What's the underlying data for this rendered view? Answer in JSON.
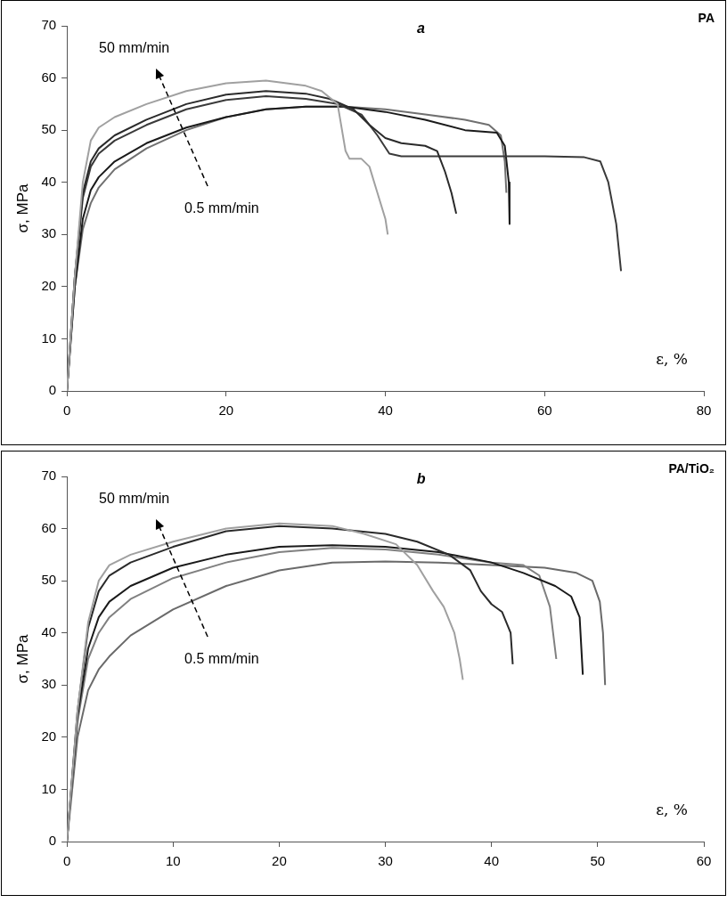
{
  "chart_data": [
    {
      "type": "line",
      "title": "a",
      "xlabel": "ε, %",
      "ylabel": "σ, MPa",
      "annotations": [
        "PA",
        "50 mm/min",
        "0.5 mm/min"
      ],
      "xlim": [
        0,
        80
      ],
      "xticks": [
        0,
        20,
        40,
        60,
        80
      ],
      "ylim": [
        0,
        70
      ],
      "yticks": [
        0,
        10,
        20,
        30,
        40,
        50,
        60,
        70
      ],
      "grid": false,
      "legend": false,
      "marker": "none",
      "series": [
        {
          "color": "#a0a0a0",
          "x": [
            0,
            1,
            2,
            3,
            4,
            6,
            10,
            15,
            20,
            25,
            30,
            32,
            34,
            35,
            35.5,
            37,
            38,
            39,
            40,
            40.3
          ],
          "values": [
            0,
            22,
            40,
            48,
            50.5,
            52.5,
            55,
            57.5,
            59,
            59.5,
            58.5,
            57.5,
            55,
            46,
            44.5,
            44.5,
            43,
            38,
            33,
            30
          ]
        },
        {
          "color": "#2a2a2a",
          "x": [
            0,
            1,
            2,
            3,
            4,
            6,
            10,
            15,
            20,
            25,
            30,
            33,
            36,
            38,
            40,
            42,
            45,
            46.5,
            47.5,
            48.3,
            48.9
          ],
          "values": [
            0,
            22,
            38,
            44,
            46.5,
            49,
            52,
            55,
            56.8,
            57.5,
            57,
            56,
            54,
            51,
            48.5,
            47.5,
            47,
            46,
            42,
            38,
            34
          ]
        },
        {
          "color": "#3a3a3a",
          "x": [
            0,
            1,
            2,
            3,
            4,
            6,
            10,
            15,
            20,
            25,
            30,
            34,
            37,
            39,
            40.5,
            42,
            45,
            50,
            55,
            60,
            65,
            67,
            68,
            69,
            69.6
          ],
          "values": [
            0,
            22,
            37,
            43,
            45.5,
            48,
            51,
            54,
            55.8,
            56.5,
            56,
            55,
            53,
            49,
            45.5,
            45,
            45,
            45,
            45,
            45,
            44.8,
            44,
            40,
            32,
            23
          ]
        },
        {
          "color": "#1a1a1a",
          "x": [
            0,
            1,
            2,
            3,
            4,
            6,
            10,
            15,
            20,
            25,
            30,
            35,
            40,
            45,
            50,
            54,
            55,
            55.5,
            55.6
          ],
          "values": [
            0,
            20,
            33,
            38.5,
            41,
            44,
            47.5,
            50.5,
            52.5,
            54,
            54.5,
            54.5,
            53.5,
            52,
            50,
            49.5,
            47,
            40,
            32
          ]
        },
        {
          "color": "#707070",
          "x": [
            0,
            1,
            2,
            3,
            4,
            6,
            10,
            15,
            20,
            25,
            30,
            35,
            40,
            45,
            50,
            53,
            54.5,
            55,
            55.2
          ],
          "values": [
            0,
            20,
            31,
            36,
            39,
            42.5,
            46.5,
            50,
            52.5,
            54,
            54.5,
            54.5,
            54,
            53,
            52,
            51,
            49,
            44,
            38
          ]
        }
      ]
    },
    {
      "type": "line",
      "title": "b",
      "xlabel": "ε, %",
      "ylabel": "σ, MPa",
      "annotations": [
        "PA/TiO₂",
        "50 mm/min",
        "0.5 mm/min"
      ],
      "xlim": [
        0,
        60
      ],
      "xticks": [
        0,
        10,
        20,
        30,
        40,
        50,
        60
      ],
      "ylim": [
        0,
        70
      ],
      "yticks": [
        0,
        10,
        20,
        30,
        40,
        50,
        60,
        70
      ],
      "grid": false,
      "legend": false,
      "marker": "none",
      "series": [
        {
          "color": "#a0a0a0",
          "x": [
            0,
            1,
            2,
            3,
            4,
            6,
            10,
            15,
            20,
            25,
            28,
            31,
            33,
            34.5,
            35.5,
            36.5,
            37,
            37.3
          ],
          "values": [
            0,
            25,
            42,
            50,
            53,
            55,
            57.5,
            60,
            61,
            60.5,
            59,
            57,
            53,
            48,
            45,
            40,
            35,
            31
          ]
        },
        {
          "color": "#2a2a2a",
          "x": [
            0,
            1,
            2,
            3,
            4,
            6,
            10,
            15,
            20,
            25,
            30,
            33,
            36,
            38,
            39,
            40,
            41,
            41.8,
            42
          ],
          "values": [
            0,
            25,
            41,
            48,
            51,
            53.5,
            56.5,
            59.5,
            60.5,
            60,
            59,
            57.5,
            55,
            52,
            48,
            45.5,
            44,
            40,
            34
          ]
        },
        {
          "color": "#1a1a1a",
          "x": [
            0,
            1,
            2,
            3,
            4,
            6,
            10,
            15,
            20,
            25,
            30,
            35,
            40,
            43,
            46,
            47.5,
            48.3,
            48.6
          ],
          "values": [
            0,
            24,
            37,
            43,
            46,
            49,
            52.5,
            55,
            56.5,
            56.8,
            56.5,
            55.5,
            53.5,
            51.5,
            49,
            47,
            43,
            32
          ]
        },
        {
          "color": "#808080",
          "x": [
            0,
            1,
            2,
            3,
            4,
            6,
            10,
            15,
            20,
            25,
            30,
            35,
            40,
            43,
            44.5,
            45.5,
            46.1
          ],
          "values": [
            0,
            23,
            35,
            40,
            43,
            46.5,
            50.5,
            53.5,
            55.5,
            56.3,
            56,
            55,
            53.5,
            53,
            51,
            45,
            35
          ]
        },
        {
          "color": "#6a6a6a",
          "x": [
            0,
            1,
            2,
            3,
            4,
            6,
            10,
            15,
            20,
            25,
            30,
            35,
            40,
            45,
            48,
            49.5,
            50.2,
            50.5,
            50.7
          ],
          "values": [
            0,
            20,
            29,
            33,
            35.5,
            39.5,
            44.5,
            49,
            52,
            53.5,
            53.7,
            53.5,
            53,
            52.5,
            51.5,
            50,
            46,
            40,
            30
          ]
        }
      ]
    }
  ]
}
